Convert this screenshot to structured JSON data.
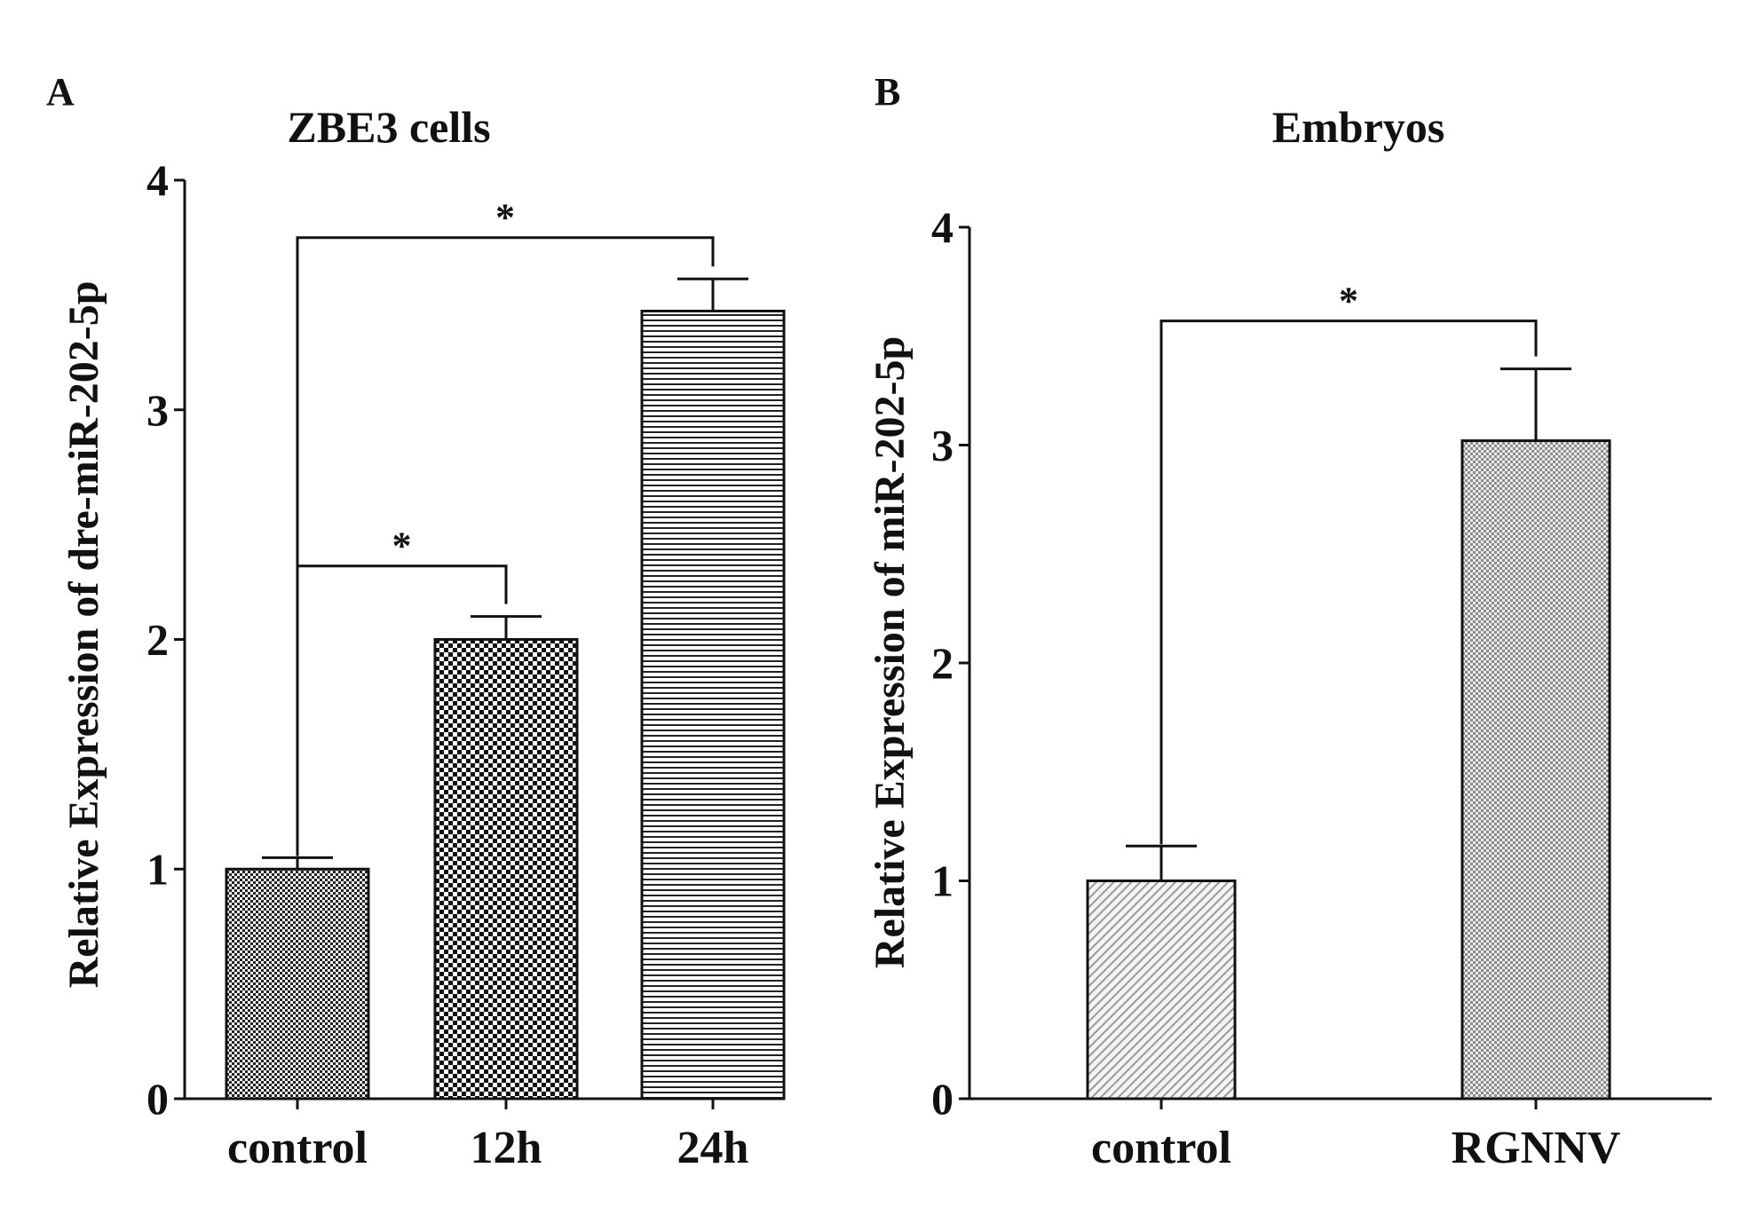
{
  "colors": {
    "ink": "#111111",
    "bar_stroke": "#111111",
    "background": "#ffffff"
  },
  "chart_data": [
    {
      "panel": "A",
      "type": "bar",
      "title": "ZBE3 cells",
      "xlabel": "",
      "ylabel": "Relative Expression of  dre-miR-202-5p",
      "categories": [
        "control",
        "12h",
        "24h"
      ],
      "values": [
        1.0,
        2.0,
        3.43
      ],
      "errors": [
        0.05,
        0.1,
        0.14
      ],
      "ylim": [
        0,
        4
      ],
      "yticks": [
        0,
        1,
        2,
        3,
        4
      ],
      "fills": [
        "fine-checker",
        "checker",
        "horizontal-lines"
      ],
      "significance": [
        {
          "from": 0,
          "to": 1,
          "label": "*",
          "y": 2.32
        },
        {
          "from": 0,
          "to": 2,
          "label": "*",
          "y": 3.75
        }
      ],
      "grid": false,
      "legend": "none"
    },
    {
      "panel": "B",
      "type": "bar",
      "title": "Embryos",
      "xlabel": "",
      "ylabel": "Relative Expression of miR-202-5p",
      "categories": [
        "control",
        "RGNNV"
      ],
      "values": [
        1.0,
        3.02
      ],
      "errors": [
        0.16,
        0.33
      ],
      "ylim": [
        0,
        4
      ],
      "yticks": [
        0,
        1,
        2,
        3,
        4
      ],
      "fills": [
        "diagonal-lines",
        "fine-crosshatch"
      ],
      "significance": [
        {
          "from": 0,
          "to": 1,
          "label": "*",
          "y": 3.57
        }
      ],
      "grid": false,
      "legend": "none"
    }
  ]
}
